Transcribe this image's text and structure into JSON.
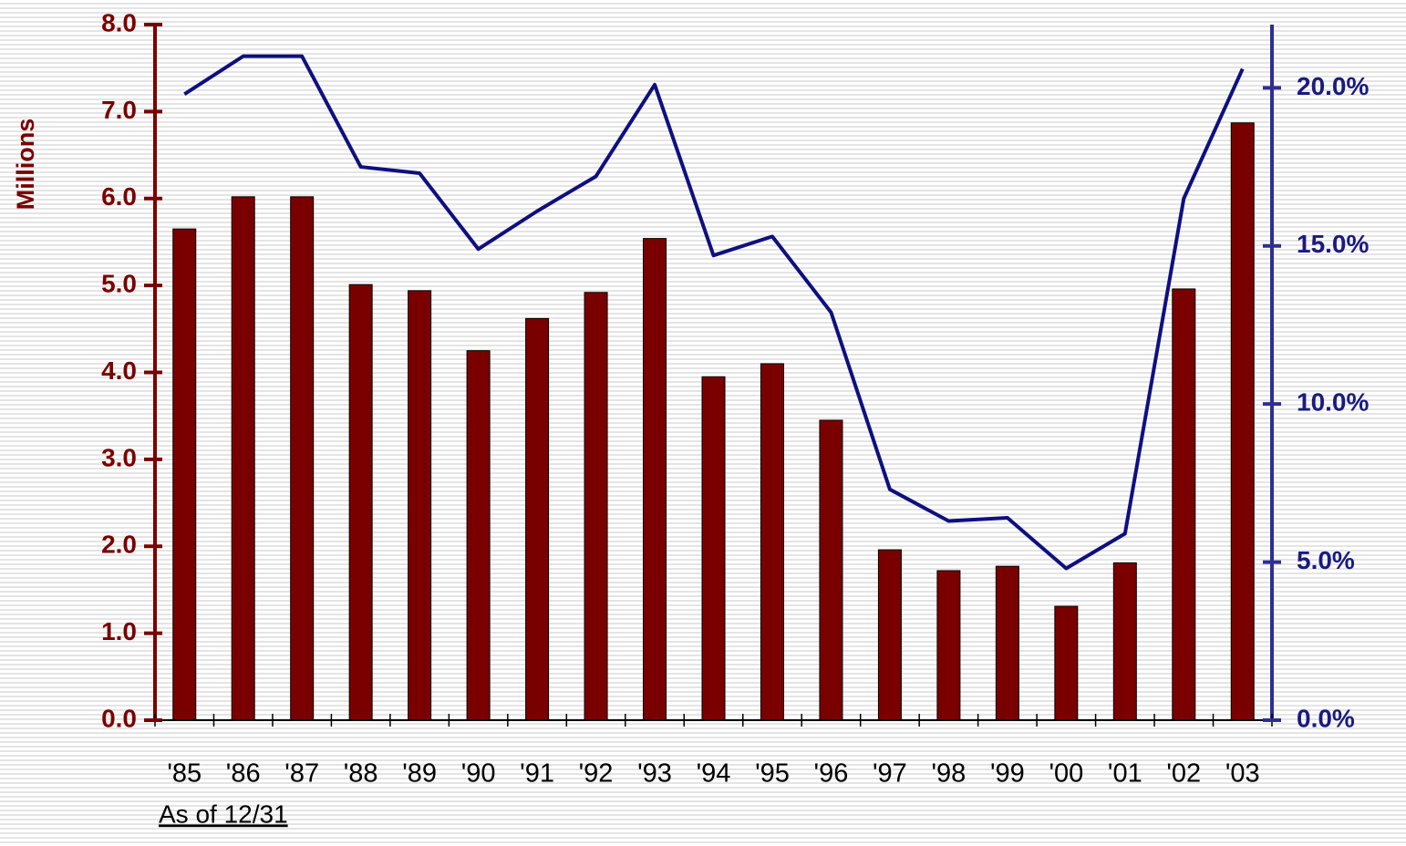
{
  "chart_data": {
    "type": "bar",
    "y_label": "Millions",
    "note": "As of 12/31",
    "categories": [
      "'85",
      "'86",
      "'87",
      "'88",
      "'89",
      "'90",
      "'91",
      "'92",
      "'93",
      "'94",
      "'95",
      "'96",
      "'97",
      "'98",
      "'99",
      "'00",
      "'01",
      "'02",
      "'03"
    ],
    "ylim": [
      0,
      8
    ],
    "yticks": [
      {
        "value": 0,
        "label": "0.0"
      },
      {
        "value": 1,
        "label": "1.0"
      },
      {
        "value": 2,
        "label": "2.0"
      },
      {
        "value": 3,
        "label": "3.0"
      },
      {
        "value": 4,
        "label": "4.0"
      },
      {
        "value": 5,
        "label": "5.0"
      },
      {
        "value": 6,
        "label": "6.0"
      },
      {
        "value": 7,
        "label": "7.0"
      },
      {
        "value": 8,
        "label": "8.0"
      }
    ],
    "y2lim": [
      0,
      22
    ],
    "y2ticks": [
      {
        "value": 0,
        "label": "0.0%"
      },
      {
        "value": 5,
        "label": "5.0%"
      },
      {
        "value": 10,
        "label": "10.0%"
      },
      {
        "value": 15,
        "label": "15.0%"
      },
      {
        "value": 20,
        "label": "20.0%"
      }
    ],
    "left_axis_color": "#7a0000",
    "right_axis_color": "#2e2e96",
    "series": [
      {
        "type": "bar",
        "color": "#7a0000",
        "values": [
          5.65,
          6.02,
          6.02,
          5.01,
          4.94,
          4.25,
          4.62,
          4.92,
          5.54,
          3.95,
          4.1,
          3.45,
          1.96,
          1.72,
          1.77,
          1.31,
          1.81,
          4.96,
          6.87
        ]
      },
      {
        "type": "line",
        "axis": "y2",
        "color": "#0f0f80",
        "values": [
          19.8,
          21.0,
          21.0,
          17.5,
          17.3,
          14.9,
          16.1,
          17.2,
          20.1,
          14.7,
          15.3,
          12.9,
          7.3,
          6.3,
          6.4,
          4.8,
          5.9,
          16.5,
          20.6
        ]
      }
    ]
  }
}
